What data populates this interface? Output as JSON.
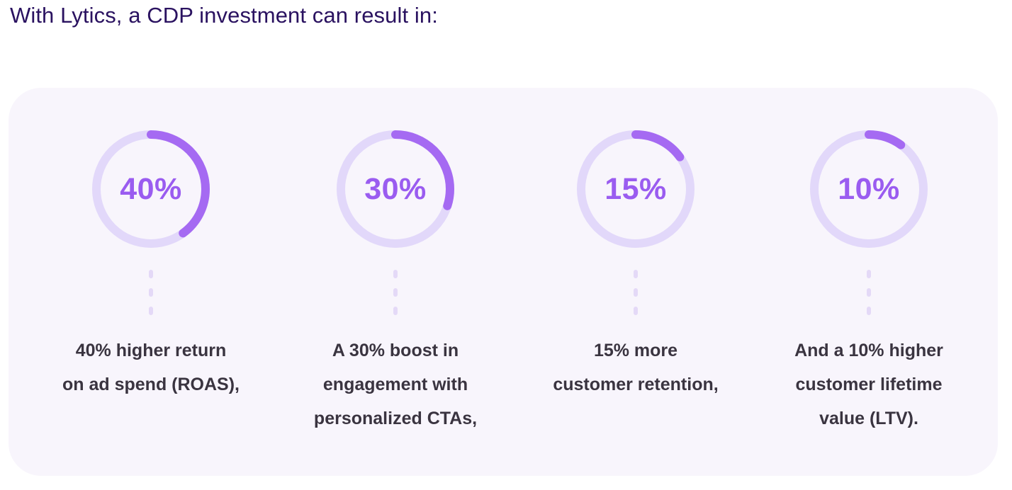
{
  "heading": "With Lytics, a CDP investment can result in:",
  "colors": {
    "heading": "#2a1260",
    "panel_bg": "#f8f5fc",
    "ring_track": "#e2d8fa",
    "ring_fill": "#a56af2",
    "percent_text": "#9a5cf0",
    "description_text": "#3a3440",
    "connector": "#e4d9f7"
  },
  "chart_data": {
    "type": "donut-progress",
    "categories": [
      "ROAS",
      "Engagement",
      "Retention",
      "LTV"
    ],
    "values": [
      40,
      30,
      15,
      10
    ],
    "unit": "%",
    "max": 100
  },
  "stats": [
    {
      "value": 40,
      "value_label": "40%",
      "description_lines": [
        "40% higher return",
        "on ad spend (ROAS),"
      ]
    },
    {
      "value": 30,
      "value_label": "30%",
      "description_lines": [
        "A 30% boost in",
        "engagement with",
        "personalized CTAs,"
      ]
    },
    {
      "value": 15,
      "value_label": "15%",
      "description_lines": [
        "15% more",
        "customer retention,"
      ]
    },
    {
      "value": 10,
      "value_label": "10%",
      "description_lines": [
        "And a 10% higher",
        "customer lifetime",
        "value (LTV)."
      ]
    }
  ]
}
